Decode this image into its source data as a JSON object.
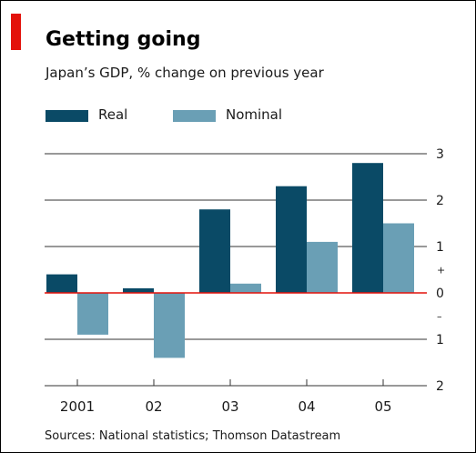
{
  "colors": {
    "real": "#0a4a66",
    "nominal": "#6a9fb5",
    "zero_line": "#e3120b",
    "accent": "#e3120b",
    "gridline": "#333333"
  },
  "chart_data": {
    "type": "bar",
    "title": "Getting going",
    "subtitle": "Japan’s GDP, % change on previous year",
    "categories": [
      "2001",
      "02",
      "03",
      "04",
      "05"
    ],
    "series": [
      {
        "name": "Real",
        "values": [
          0.4,
          0.1,
          1.8,
          2.3,
          2.8
        ]
      },
      {
        "name": "Nominal",
        "values": [
          -0.9,
          -1.4,
          0.2,
          1.1,
          1.5
        ]
      }
    ],
    "ylim": [
      -2,
      3
    ],
    "y_ticks": [
      {
        "value": 3,
        "label": "3"
      },
      {
        "value": 2,
        "label": "2"
      },
      {
        "value": 1,
        "label": "1"
      },
      {
        "value": 0,
        "label": "0"
      },
      {
        "value": -1,
        "label": "1"
      },
      {
        "value": -2,
        "label": "2"
      }
    ],
    "sign_markers": {
      "positive": "+",
      "negative": "–"
    },
    "y_axis_side": "right",
    "grid": true,
    "legend": "top-left",
    "source": "Sources: National statistics; Thomson Datastream"
  }
}
